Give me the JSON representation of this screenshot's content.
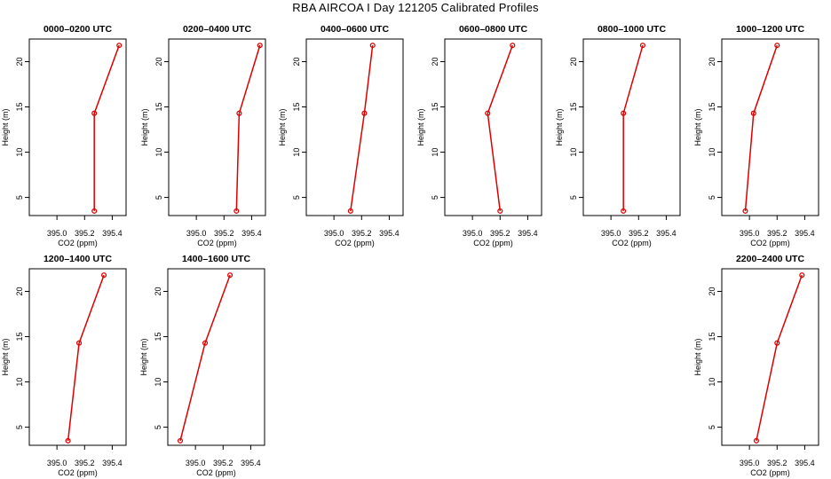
{
  "title": "RBA AIRCOA I  Day 121205  Calibrated Profiles",
  "colors": {
    "series": "#dd0000",
    "axis": "#000000"
  },
  "chart_data": [
    {
      "type": "line",
      "title": "0000–0200 UTC",
      "xlabel": "CO2 (ppm)",
      "ylabel": "Height (m)",
      "xlim": [
        394.8,
        395.5
      ],
      "ylim": [
        3,
        22.5
      ],
      "xticks": [
        "395.0",
        "395.2",
        "395.4"
      ],
      "yticks": [
        "5",
        "10",
        "15",
        "20"
      ],
      "x": [
        395.27,
        395.27,
        395.45
      ],
      "y": [
        3.5,
        14.3,
        21.8
      ]
    },
    {
      "type": "line",
      "title": "0200–0400 UTC",
      "xlabel": "CO2 (ppm)",
      "ylabel": "Height (m)",
      "xlim": [
        394.8,
        395.5
      ],
      "ylim": [
        3,
        22.5
      ],
      "xticks": [
        "395.0",
        "395.2",
        "395.4"
      ],
      "yticks": [
        "5",
        "10",
        "15",
        "20"
      ],
      "x": [
        395.29,
        395.31,
        395.46
      ],
      "y": [
        3.5,
        14.3,
        21.8
      ]
    },
    {
      "type": "line",
      "title": "0400–0600 UTC",
      "xlabel": "CO2 (ppm)",
      "ylabel": "Height (m)",
      "xlim": [
        394.8,
        395.5
      ],
      "ylim": [
        3,
        22.5
      ],
      "xticks": [
        "395.0",
        "395.2",
        "395.4"
      ],
      "yticks": [
        "5",
        "10",
        "15",
        "20"
      ],
      "x": [
        395.12,
        395.22,
        395.28
      ],
      "y": [
        3.5,
        14.3,
        21.8
      ]
    },
    {
      "type": "line",
      "title": "0600–0800 UTC",
      "xlabel": "CO2 (ppm)",
      "ylabel": "Height (m)",
      "xlim": [
        394.8,
        395.5
      ],
      "ylim": [
        3,
        22.5
      ],
      "xticks": [
        "395.0",
        "395.2",
        "395.4"
      ],
      "yticks": [
        "5",
        "10",
        "15",
        "20"
      ],
      "x": [
        395.2,
        395.11,
        395.29
      ],
      "y": [
        3.5,
        14.3,
        21.8
      ]
    },
    {
      "type": "line",
      "title": "0800–1000 UTC",
      "xlabel": "CO2 (ppm)",
      "ylabel": "Height (m)",
      "xlim": [
        394.8,
        395.5
      ],
      "ylim": [
        3,
        22.5
      ],
      "xticks": [
        "395.0",
        "395.2",
        "395.4"
      ],
      "yticks": [
        "5",
        "10",
        "15",
        "20"
      ],
      "x": [
        395.09,
        395.09,
        395.23
      ],
      "y": [
        3.5,
        14.3,
        21.8
      ]
    },
    {
      "type": "line",
      "title": "1000–1200 UTC",
      "xlabel": "CO2 (ppm)",
      "ylabel": "Height (m)",
      "xlim": [
        394.8,
        395.5
      ],
      "ylim": [
        3,
        22.5
      ],
      "xticks": [
        "395.0",
        "395.2",
        "395.4"
      ],
      "yticks": [
        "5",
        "10",
        "15",
        "20"
      ],
      "x": [
        394.97,
        395.03,
        395.2
      ],
      "y": [
        3.5,
        14.3,
        21.8
      ]
    },
    {
      "type": "line",
      "title": "1200–1400 UTC",
      "xlabel": "CO2 (ppm)",
      "ylabel": "Height (m)",
      "xlim": [
        394.8,
        395.5
      ],
      "ylim": [
        3,
        22.5
      ],
      "xticks": [
        "395.0",
        "395.2",
        "395.4"
      ],
      "yticks": [
        "5",
        "10",
        "15",
        "20"
      ],
      "x": [
        395.08,
        395.16,
        395.34
      ],
      "y": [
        3.5,
        14.3,
        21.8
      ]
    },
    {
      "type": "line",
      "title": "1400–1600 UTC",
      "xlabel": "CO2 (ppm)",
      "ylabel": "Height (m)",
      "xlim": [
        394.8,
        395.5
      ],
      "ylim": [
        3,
        22.5
      ],
      "xticks": [
        "395.0",
        "395.2",
        "395.4"
      ],
      "yticks": [
        "5",
        "10",
        "15",
        "20"
      ],
      "x": [
        394.89,
        395.07,
        395.25
      ],
      "y": [
        3.5,
        14.3,
        21.8
      ]
    },
    {
      "type": "line",
      "title": "2200–2400 UTC",
      "xlabel": "CO2 (ppm)",
      "ylabel": "Height (m)",
      "xlim": [
        394.8,
        395.5
      ],
      "ylim": [
        3,
        22.5
      ],
      "xticks": [
        "395.0",
        "395.2",
        "395.4"
      ],
      "yticks": [
        "5",
        "10",
        "15",
        "20"
      ],
      "x": [
        395.05,
        395.2,
        395.38
      ],
      "y": [
        3.5,
        14.3,
        21.8
      ]
    }
  ]
}
